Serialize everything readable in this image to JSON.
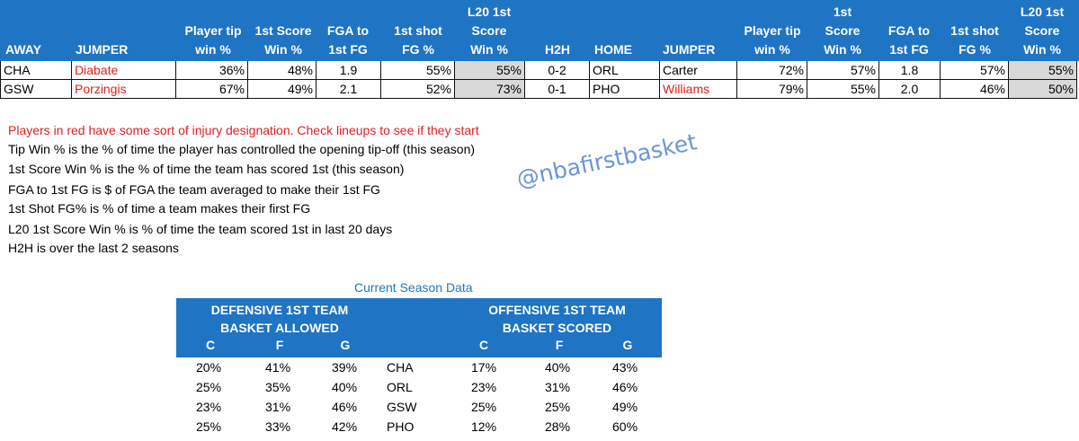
{
  "main_table": {
    "headers": {
      "away": "AWAY",
      "away_jumper": "JUMPER",
      "away_tip": [
        "Player tip",
        "win %"
      ],
      "away_first_score": [
        "1st Score",
        "Win %"
      ],
      "away_fga": [
        "FGA to",
        "1st FG"
      ],
      "away_first_shot": [
        "1st shot",
        "FG %"
      ],
      "away_l20": [
        "L20 1st",
        "Score",
        "Win %"
      ],
      "h2h": "H2H",
      "home": "HOME",
      "home_jumper": "JUMPER",
      "home_tip": [
        "Player tip",
        "win %"
      ],
      "home_first_score": [
        "1st",
        "Score",
        "Win %"
      ],
      "home_fga": [
        "FGA to",
        "1st FG"
      ],
      "home_first_shot": [
        "1st shot",
        "FG %"
      ],
      "home_l20": [
        "L20 1st",
        "Score",
        "Win %"
      ]
    },
    "rows": [
      {
        "away": "CHA",
        "away_jumper": "Diabate",
        "away_tip": "36%",
        "away_first_score": "48%",
        "away_fga": "1.9",
        "away_first_shot": "55%",
        "away_l20": "55%",
        "h2h": "0-2",
        "home": "ORL",
        "home_jumper": "Carter",
        "home_tip": "72%",
        "home_first_score": "57%",
        "home_fga": "1.8",
        "home_first_shot": "57%",
        "home_l20": "55%"
      },
      {
        "away": "GSW",
        "away_jumper": "Porzingis",
        "away_tip": "67%",
        "away_first_score": "49%",
        "away_fga": "2.1",
        "away_first_shot": "52%",
        "away_l20": "73%",
        "h2h": "0-1",
        "home": "PHO",
        "home_jumper": "Williams",
        "home_tip": "79%",
        "home_first_score": "55%",
        "home_fga": "2.0",
        "home_first_shot": "46%",
        "home_l20": "50%"
      }
    ],
    "red_color": "#e01e1e",
    "header_color": "#1f74c4"
  },
  "notes": {
    "injury": "Players in red have some sort of injury designation.  Check lineups to see if they start",
    "lines": [
      "Tip Win % is the % of time the player has controlled the opening tip-off (this season)",
      "1st Score Win % is the % of time the team has scored 1st (this season)",
      "FGA to 1st FG is $ of FGA the team averaged to make their 1st FG",
      "1st Shot FG% is % of time a team makes their first FG",
      "L20 1st Score Win % is % of time the team scored 1st in last 20 days",
      "H2H is over the last 2 seasons"
    ]
  },
  "watermark": "@nbafirstbasket",
  "season": {
    "caption": "Current Season Data",
    "defensive_title": [
      "DEFENSIVE 1ST TEAM",
      "BASKET ALLOWED"
    ],
    "offensive_title": [
      "OFFENSIVE 1ST TEAM",
      "BASKET SCORED"
    ],
    "positions": [
      "C",
      "F",
      "G"
    ],
    "rows": [
      {
        "team": "CHA",
        "def": [
          "20%",
          "41%",
          "39%"
        ],
        "off": [
          "17%",
          "40%",
          "43%"
        ]
      },
      {
        "team": "ORL",
        "def": [
          "25%",
          "35%",
          "40%"
        ],
        "off": [
          "23%",
          "31%",
          "46%"
        ]
      },
      {
        "team": "GSW",
        "def": [
          "23%",
          "31%",
          "46%"
        ],
        "off": [
          "25%",
          "25%",
          "49%"
        ]
      },
      {
        "team": "PHO",
        "def": [
          "25%",
          "33%",
          "42%"
        ],
        "off": [
          "12%",
          "28%",
          "60%"
        ]
      }
    ]
  }
}
